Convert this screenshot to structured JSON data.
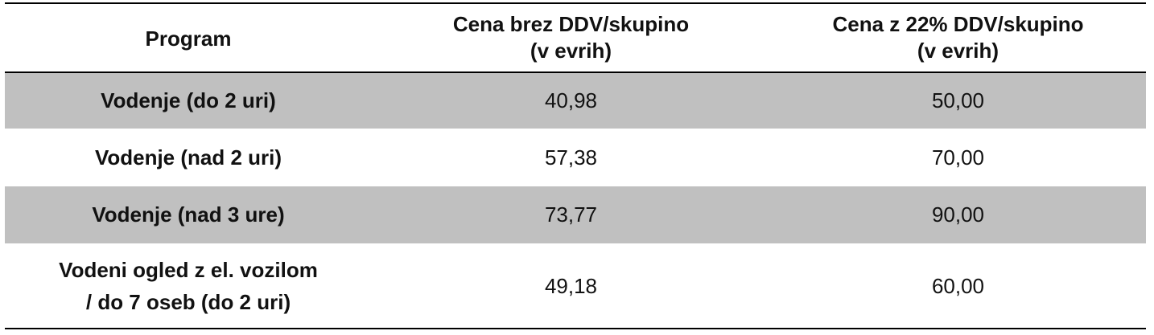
{
  "table": {
    "headers": {
      "program": "Program",
      "price_net_line1": "Cena brez DDV/skupino",
      "price_net_line2": "(v evrih)",
      "price_gross_line1": "Cena z 22% DDV/skupino",
      "price_gross_line2": "(v evrih)"
    },
    "rows": [
      {
        "program": "Vodenje (do 2 uri)",
        "price_net": "40,98",
        "price_gross": "50,00"
      },
      {
        "program": "Vodenje (nad 2 uri)",
        "price_net": "57,38",
        "price_gross": "70,00"
      },
      {
        "program": "Vodenje (nad 3 ure)",
        "price_net": "73,77",
        "price_gross": "90,00"
      },
      {
        "program_line1": "Vodeni ogled z el. vozilom",
        "program_line2": "/ do 7 oseb (do 2 uri)",
        "price_net": "49,18",
        "price_gross": "60,00"
      }
    ],
    "colors": {
      "shaded_row": "#c0c0c0",
      "rule": "#000000"
    }
  }
}
